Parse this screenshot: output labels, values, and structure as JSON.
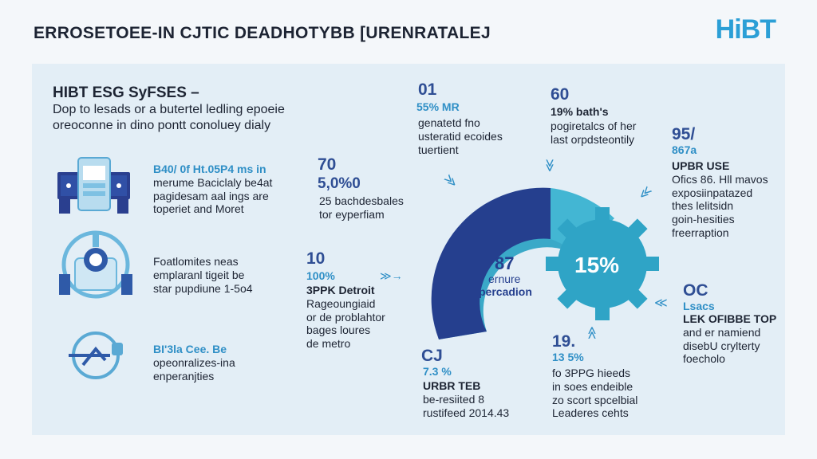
{
  "header": {
    "title": "ERROSETOEE-IN CJTIC DEADHOTYBB [URENRATALEJ",
    "logo": "HiBT"
  },
  "intro": {
    "heading": "HIBT ESG SyFSES –",
    "line1": "Dop to lesads or a butertel ledling epoeie",
    "line2": "oreoconne in dino pontt conoluey dialy"
  },
  "left_items": [
    {
      "icon": "server-rack-icon",
      "lines": [
        "B40/ 0f Ht.05P4 ms in",
        "merume Baciclaly be4at",
        "pagidesam aal ings are",
        "toperiet and Moret"
      ],
      "accent_word": "merume"
    },
    {
      "icon": "gear-robot-icon",
      "lines": [
        "Foatlomites neas",
        "emplaranl tigeit be",
        "star pupdiune 1-5o4"
      ]
    },
    {
      "icon": "magnifier-icon",
      "lines": [
        "BI'3la Cee. Be",
        "opeonralizes-ina",
        "enperanjties"
      ]
    }
  ],
  "stats": {
    "s1": {
      "num": "01",
      "pct": "55% MR",
      "lines": [
        "genatetd fno",
        "usteratid ecoides",
        "tuertient"
      ]
    },
    "s2": {
      "num": "60",
      "pct": "19% bath's",
      "lines": [
        "pogiretalcs of her",
        "last orpdsteontily"
      ]
    },
    "s3": {
      "num": "70",
      "pct": "5,0%0",
      "lines": [
        "25 bachdesbales",
        "tor eyperfiam"
      ]
    },
    "s4": {
      "num": "95/",
      "pct": "867a",
      "head": "UPBR USE",
      "lines": [
        "Ofics 86. Hll mavos",
        "exposiinpatazed",
        "thes lelitsidn",
        "goin-hesities",
        "freerraption"
      ]
    },
    "s5": {
      "num": "10",
      "pct": "100%",
      "head": "3PPK Detroit",
      "lines": [
        "Rageoungiaid",
        "or de problahtor",
        "bages loures",
        "de metro"
      ]
    },
    "s6": {
      "num": "OC",
      "pct": "Lsacs",
      "head": "LEK OFIBBE TOP",
      "lines": [
        "and er namiend",
        "disebU crylterty",
        "foecholo"
      ]
    },
    "s7": {
      "num": "CJ",
      "pct": "7.3 %",
      "head": "URBR TEB",
      "lines": [
        "be-resiited 8",
        "rustifeed 2014.43"
      ]
    },
    "s8": {
      "num": "19.",
      "pct": "13 5%",
      "lines": [
        "fo 3PPG hieeds",
        "in soes endeible",
        "zo scort spcelbial",
        "Leaderes cehts"
      ]
    }
  },
  "center": {
    "num": "87",
    "line1": "ernure",
    "line2": "percadion",
    "gear_value": "15%"
  },
  "colors": {
    "navy": "#253f8e",
    "teal": "#3fb0cf",
    "panel": "#e3eef6"
  }
}
